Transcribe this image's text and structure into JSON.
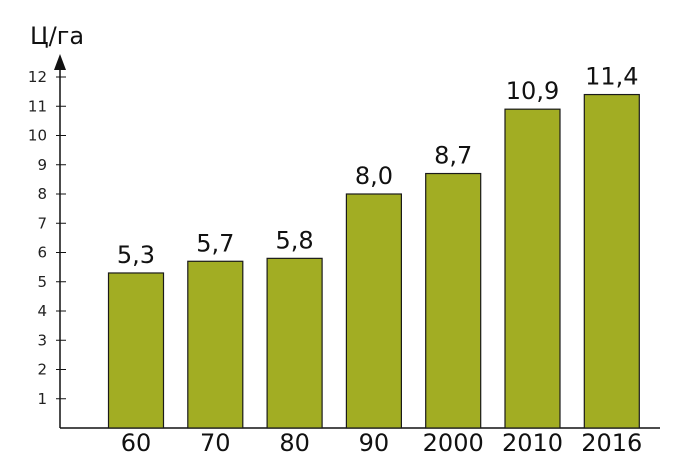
{
  "chart_data": {
    "type": "bar",
    "ylabel": "Ц/га",
    "xlabel": "",
    "title": "",
    "categories": [
      "60",
      "70",
      "80",
      "90",
      "2000",
      "2010",
      "2016"
    ],
    "values": [
      5.3,
      5.7,
      5.8,
      8.0,
      8.7,
      10.9,
      11.4
    ],
    "value_labels": [
      "5,3",
      "5,7",
      "5,8",
      "8,0",
      "8,7",
      "10,9",
      "11,4"
    ],
    "yticks": [
      1,
      2,
      3,
      4,
      5,
      6,
      7,
      8,
      9,
      10,
      11,
      12
    ],
    "ylim": [
      0,
      12
    ],
    "grid": false,
    "legend": "none",
    "bar_color": "#a2ad23",
    "bar_edge_color": "#1a1a1a"
  }
}
